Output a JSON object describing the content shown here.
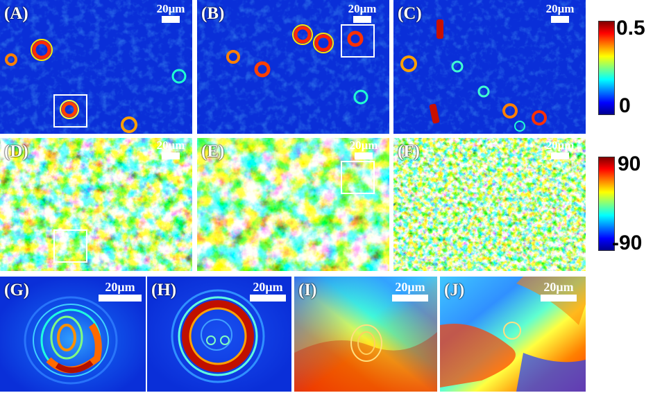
{
  "panels": {
    "A": {
      "label": "(A)",
      "scale": "20μm"
    },
    "B": {
      "label": "(B)",
      "scale": "20μm"
    },
    "C": {
      "label": "(C)",
      "scale": "20μm"
    },
    "D": {
      "label": "(D)",
      "scale": "20μm"
    },
    "E": {
      "label": "(E)",
      "scale": "20μm"
    },
    "F": {
      "label": "(F)",
      "scale": "20μm"
    },
    "G": {
      "label": "(G)",
      "scale": "20μm"
    },
    "H": {
      "label": "(H)",
      "scale": "20μm"
    },
    "I": {
      "label": "(I)",
      "scale": "20μm"
    },
    "J": {
      "label": "(J)",
      "scale": "20μm"
    }
  },
  "colorbars": {
    "magnitude": {
      "max": "0.5",
      "min": "0"
    },
    "angle": {
      "max": "90",
      "min": "-90"
    }
  },
  "colors": {
    "jet": [
      "#00008f",
      "#0000ff",
      "#0080ff",
      "#00ffff",
      "#80ff80",
      "#ffff00",
      "#ff8000",
      "#ff0000",
      "#800000"
    ],
    "background_blue": "#0a2fd8",
    "box_outline": "#ffffff"
  }
}
